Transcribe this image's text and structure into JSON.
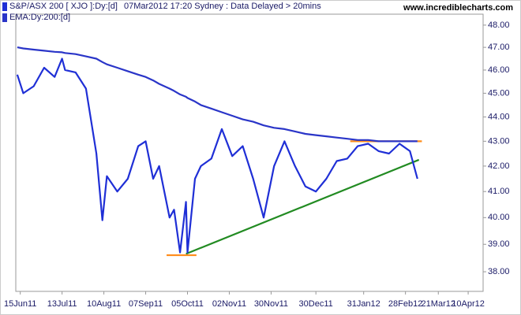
{
  "chart_data": {
    "type": "line",
    "subtitle": "07Mar2012 17:20 Sydney : Data Delayed > 20mins",
    "watermark": "www.incrediblecharts.com",
    "log_scale": true,
    "grid": false,
    "x": [
      "2011-06-13",
      "2011-06-17",
      "2011-06-24",
      "2011-07-01",
      "2011-07-08",
      "2011-07-13",
      "2011-07-15",
      "2011-07-22",
      "2011-07-29",
      "2011-08-05",
      "2011-08-09",
      "2011-08-12",
      "2011-08-19",
      "2011-08-26",
      "2011-09-02",
      "2011-09-07",
      "2011-09-12",
      "2011-09-16",
      "2011-09-23",
      "2011-09-26",
      "2011-09-30",
      "2011-10-04",
      "2011-10-05",
      "2011-10-10",
      "2011-10-14",
      "2011-10-21",
      "2011-10-28",
      "2011-11-04",
      "2011-11-11",
      "2011-11-18",
      "2011-11-25",
      "2011-12-02",
      "2011-12-09",
      "2011-12-16",
      "2011-12-23",
      "2011-12-30",
      "2012-01-06",
      "2012-01-13",
      "2012-01-20",
      "2012-01-27",
      "2012-02-03",
      "2012-02-10",
      "2012-02-17",
      "2012-02-24",
      "2012-03-02",
      "2012-03-07"
    ],
    "series": [
      {
        "name": "S&P/ASX 200 [ XJO ]:Dy:[d]",
        "color": "#1f2fd6",
        "values": [
          45.8,
          45.0,
          45.3,
          46.1,
          45.7,
          46.5,
          46.0,
          45.9,
          45.2,
          42.5,
          39.9,
          41.6,
          41.0,
          41.5,
          42.8,
          43.0,
          41.5,
          42.0,
          40.0,
          40.3,
          38.7,
          40.6,
          38.7,
          41.5,
          42.0,
          42.3,
          43.5,
          42.4,
          42.8,
          41.5,
          40.0,
          42.0,
          43.0,
          42.0,
          41.2,
          41.0,
          41.5,
          42.2,
          42.3,
          42.8,
          42.9,
          42.6,
          42.5,
          42.9,
          42.6,
          41.5
        ]
      },
      {
        "name": "EMA:Dy:200:[d]",
        "color": "#2a35c8",
        "values": [
          47.0,
          46.95,
          46.9,
          46.85,
          46.8,
          46.78,
          46.75,
          46.7,
          46.6,
          46.5,
          46.35,
          46.25,
          46.1,
          45.95,
          45.8,
          45.7,
          45.55,
          45.4,
          45.2,
          45.1,
          44.95,
          44.85,
          44.8,
          44.65,
          44.5,
          44.35,
          44.2,
          44.05,
          43.9,
          43.8,
          43.65,
          43.55,
          43.5,
          43.4,
          43.3,
          43.25,
          43.2,
          43.15,
          43.1,
          43.05,
          43.05,
          43.0,
          43.0,
          43.0,
          43.0,
          43.0
        ]
      }
    ],
    "annotations": [
      {
        "color": "#228b22",
        "points": [
          [
            "2011-10-04",
            38.65
          ],
          [
            "2012-03-08",
            42.25
          ]
        ]
      },
      {
        "color": "#ff8c1a",
        "points": [
          [
            "2011-09-21",
            38.6
          ],
          [
            "2011-10-11",
            38.6
          ]
        ]
      },
      {
        "color": "#ff8c1a",
        "points": [
          [
            "2012-01-22",
            43.0
          ],
          [
            "2012-03-10",
            43.0
          ]
        ]
      }
    ],
    "xlim": [
      "2011-06-12",
      "2012-04-20"
    ],
    "xticks": [
      {
        "value": "2011-06-15",
        "label": "15Jun11"
      },
      {
        "value": "2011-07-13",
        "label": "13Jul11"
      },
      {
        "value": "2011-08-10",
        "label": "10Aug11"
      },
      {
        "value": "2011-09-07",
        "label": "07Sep11"
      },
      {
        "value": "2011-10-05",
        "label": "05Oct11"
      },
      {
        "value": "2011-11-02",
        "label": "02Nov11"
      },
      {
        "value": "2011-11-30",
        "label": "30Nov11"
      },
      {
        "value": "2011-12-30",
        "label": "30Dec11"
      },
      {
        "value": "2012-01-31",
        "label": "31Jan12"
      },
      {
        "value": "2012-02-28",
        "label": "28Feb12"
      },
      {
        "value": "2012-03-21",
        "label": "21Mar12"
      },
      {
        "value": "2012-04-10",
        "label": "10Apr12"
      }
    ],
    "ylim": [
      37.3,
      48.5
    ],
    "yticks": [
      {
        "value": 38,
        "label": "38.00"
      },
      {
        "value": 39,
        "label": "39.00"
      },
      {
        "value": 40,
        "label": "40.00"
      },
      {
        "value": 41,
        "label": "41.00"
      },
      {
        "value": 42,
        "label": "42.00"
      },
      {
        "value": 43,
        "label": "43.00"
      },
      {
        "value": 44,
        "label": "44.00"
      },
      {
        "value": 45,
        "label": "45.00"
      },
      {
        "value": 46,
        "label": "46.00"
      },
      {
        "value": 47,
        "label": "47.00"
      },
      {
        "value": 48,
        "label": "48.00"
      }
    ]
  }
}
